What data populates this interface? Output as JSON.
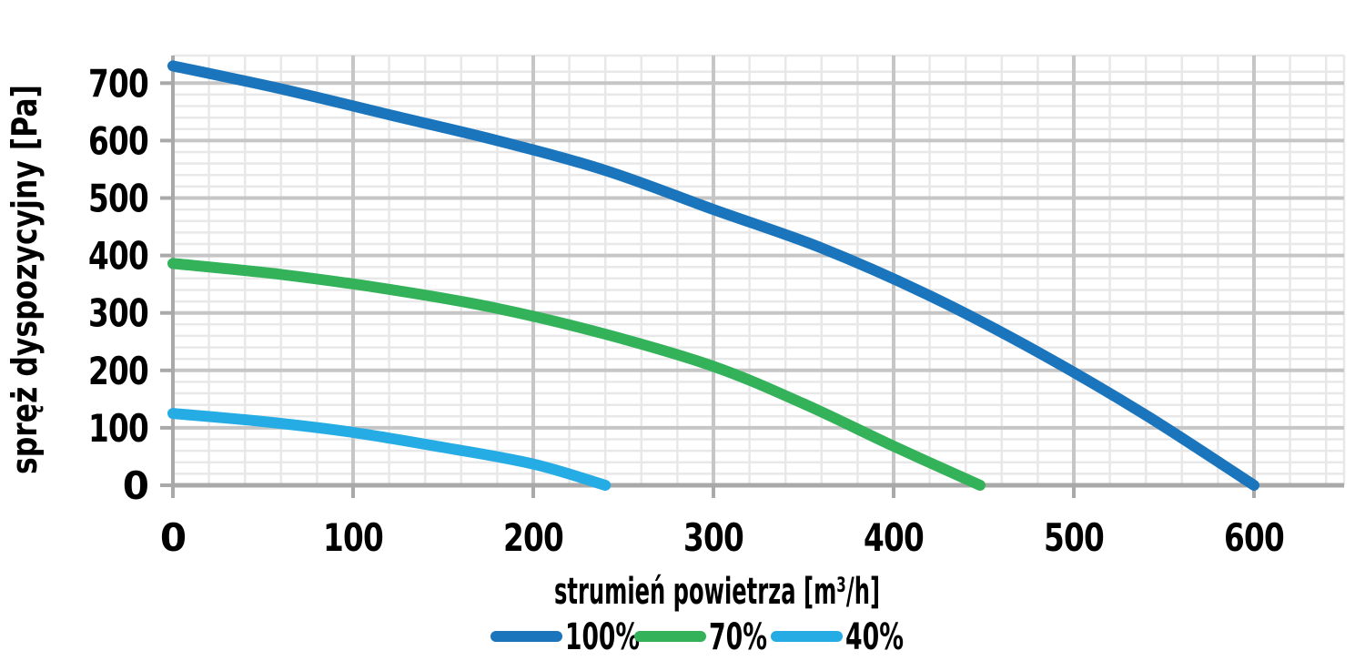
{
  "chart_data": {
    "type": "line",
    "title": "",
    "xlabel": "strumień powietrza [m³/h]",
    "ylabel": "spręż dyspozycyjny [Pa]",
    "xlim": [
      0,
      650
    ],
    "ylim": [
      0,
      748
    ],
    "x_ticks": [
      0,
      100,
      200,
      300,
      400,
      500,
      600
    ],
    "y_ticks": [
      0,
      100,
      200,
      300,
      400,
      500,
      600,
      700
    ],
    "grid": {
      "major_step": 100,
      "minor_step": 20,
      "major_color": "#c6c6c6",
      "minor_color": "#e8e8e8",
      "axis_color": "#a9a9a9",
      "minor_grid_on": true
    },
    "legend_position": "bottom",
    "series": [
      {
        "name": "100%",
        "color": "#1b75bc",
        "points": [
          [
            0,
            730
          ],
          [
            60,
            690
          ],
          [
            120,
            645
          ],
          [
            180,
            600
          ],
          [
            240,
            548
          ],
          [
            300,
            480
          ],
          [
            360,
            413
          ],
          [
            420,
            330
          ],
          [
            480,
            232
          ],
          [
            540,
            122
          ],
          [
            600,
            0
          ]
        ]
      },
      {
        "name": "70%",
        "color": "#33b25a",
        "points": [
          [
            0,
            386
          ],
          [
            60,
            367
          ],
          [
            120,
            341
          ],
          [
            180,
            308
          ],
          [
            240,
            263
          ],
          [
            300,
            207
          ],
          [
            350,
            142
          ],
          [
            400,
            68
          ],
          [
            448,
            0
          ]
        ]
      },
      {
        "name": "40%",
        "color": "#25ace4",
        "points": [
          [
            0,
            125
          ],
          [
            50,
            111
          ],
          [
            100,
            92
          ],
          [
            150,
            66
          ],
          [
            200,
            37
          ],
          [
            240,
            0
          ]
        ]
      }
    ]
  },
  "text_color": "#000000",
  "background_color": "#ffffff"
}
